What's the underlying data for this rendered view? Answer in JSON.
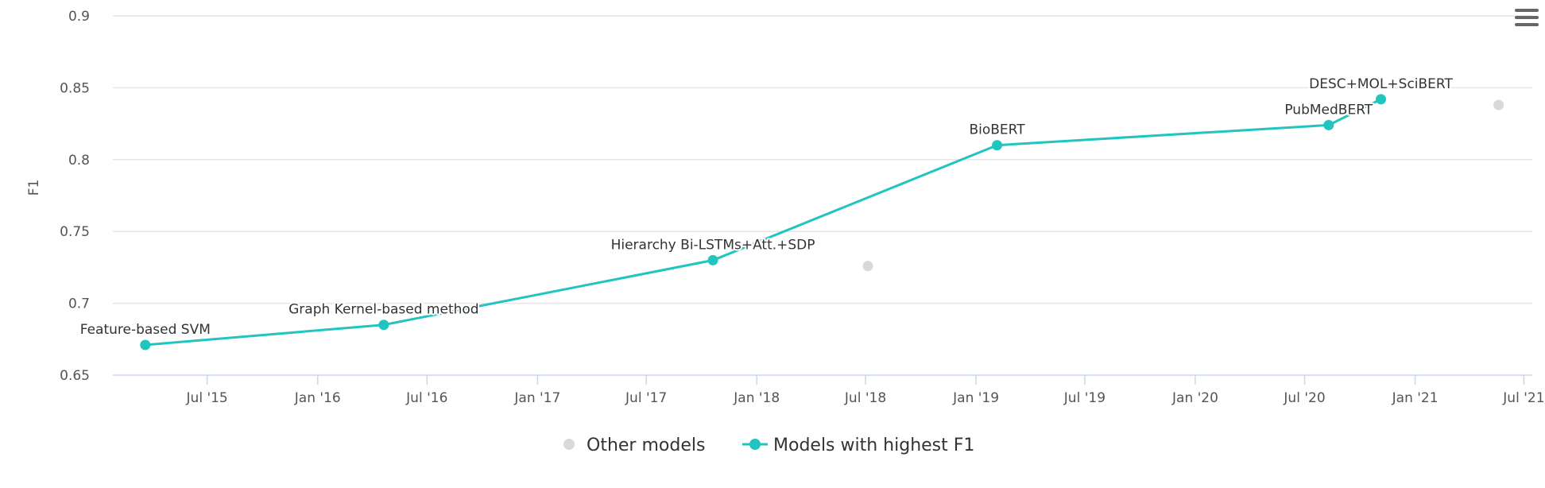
{
  "chart_data": {
    "type": "line",
    "title": "",
    "xlabel": "",
    "ylabel": "F1",
    "ylim": [
      0.65,
      0.9
    ],
    "yticks": [
      "0.65",
      "0.7",
      "0.75",
      "0.8",
      "0.85",
      "0.9"
    ],
    "xlim": [
      "2015-01-25",
      "2021-07-15"
    ],
    "xticks": [
      {
        "date": "2015-07-01",
        "label": "Jul '15"
      },
      {
        "date": "2016-01-01",
        "label": "Jan '16"
      },
      {
        "date": "2016-07-01",
        "label": "Jul '16"
      },
      {
        "date": "2017-01-01",
        "label": "Jan '17"
      },
      {
        "date": "2017-07-01",
        "label": "Jul '17"
      },
      {
        "date": "2018-01-01",
        "label": "Jan '18"
      },
      {
        "date": "2018-07-01",
        "label": "Jul '18"
      },
      {
        "date": "2019-01-01",
        "label": "Jan '19"
      },
      {
        "date": "2019-07-01",
        "label": "Jul '19"
      },
      {
        "date": "2020-01-01",
        "label": "Jan '20"
      },
      {
        "date": "2020-07-01",
        "label": "Jul '20"
      },
      {
        "date": "2021-01-01",
        "label": "Jan '21"
      },
      {
        "date": "2021-07-01",
        "label": "Jul '21"
      }
    ],
    "grid": true,
    "legend": "bottom-center",
    "series": [
      {
        "name": "Other models",
        "color": "#d9d9d9",
        "points": [
          {
            "x": "2018-07-05",
            "y": 0.726
          },
          {
            "x": "2021-05-20",
            "y": 0.838
          }
        ]
      },
      {
        "name": "Models with highest F1",
        "color": "#21c5c0",
        "points": [
          {
            "x": "2015-03-20",
            "y": 0.671,
            "label": "Feature-based SVM"
          },
          {
            "x": "2016-04-20",
            "y": 0.685,
            "label": "Graph Kernel-based method"
          },
          {
            "x": "2017-10-20",
            "y": 0.73,
            "label": "Hierarchy Bi-LSTMs+Att.+SDP"
          },
          {
            "x": "2019-02-05",
            "y": 0.81,
            "label": "BioBERT"
          },
          {
            "x": "2020-08-10",
            "y": 0.824,
            "label": "PubMedBERT"
          },
          {
            "x": "2020-11-05",
            "y": 0.842,
            "label": "DESC+MOL+SciBERT"
          }
        ]
      }
    ]
  },
  "menu": {
    "icon": "hamburger-menu-icon"
  }
}
